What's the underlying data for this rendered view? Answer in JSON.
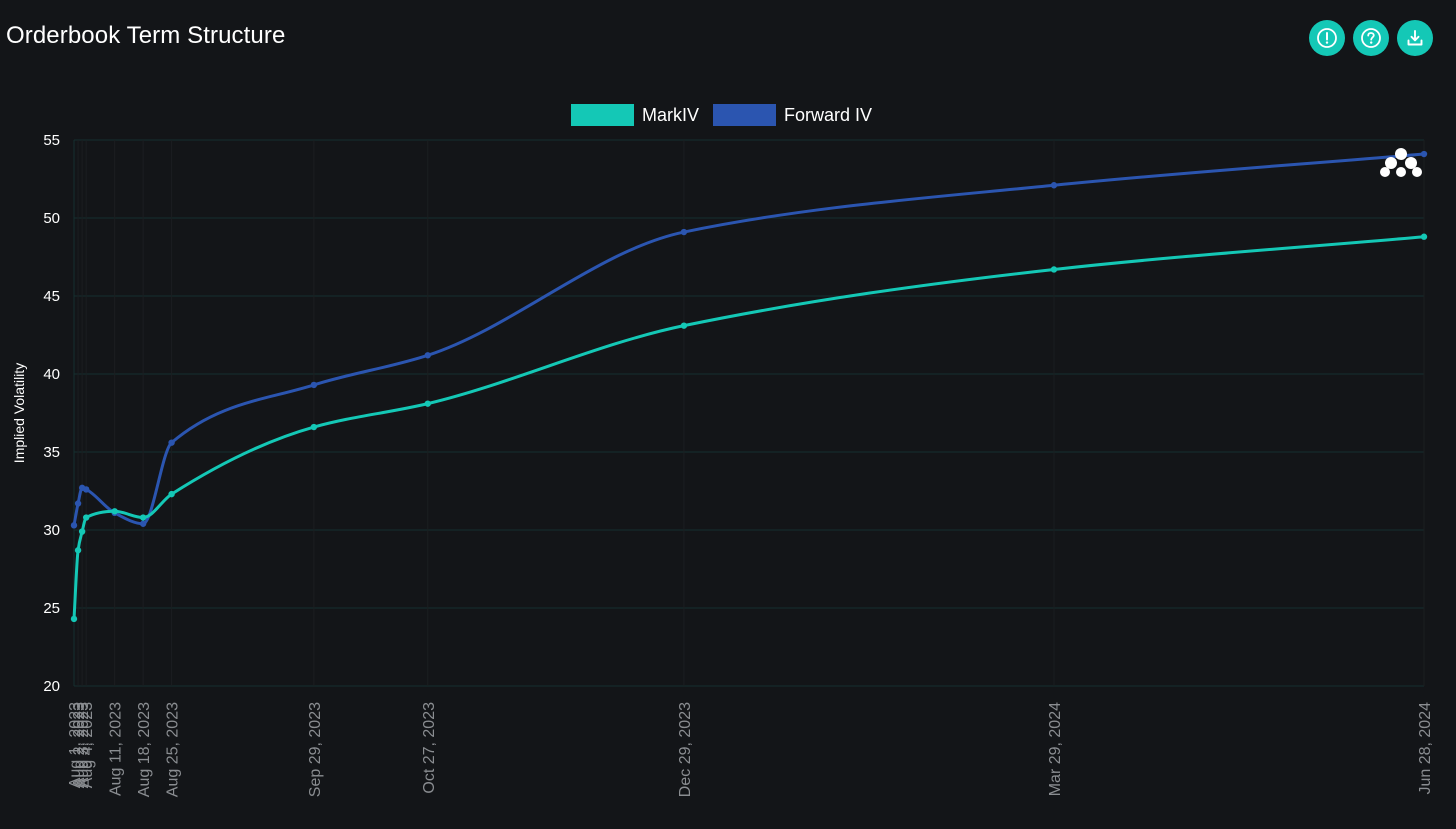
{
  "header": {
    "title": "Orderbook Term Structure"
  },
  "toolbar": {
    "buttons": [
      {
        "icon": "info-alert-icon"
      },
      {
        "icon": "help-icon"
      },
      {
        "icon": "download-icon"
      }
    ],
    "accent": "#14c8b6"
  },
  "legend": {
    "items": [
      {
        "label": "MarkIV",
        "color": "#14c8b6"
      },
      {
        "label": "Forward IV",
        "color": "#2b55b0"
      }
    ]
  },
  "chart_data": {
    "type": "line",
    "xlabel": "",
    "ylabel": "Implied Volatility",
    "ylim": [
      20,
      55
    ],
    "yticks": [
      20,
      25,
      30,
      35,
      40,
      45,
      50,
      55
    ],
    "grid": true,
    "legend_position": "top-center",
    "x_tick_labels": [
      "Aug 1, 2023",
      "Aug 2, 2023",
      "Aug 3, 2023",
      "Aug 4, 2023",
      "Aug 11, 2023",
      "Aug 18, 2023",
      "Aug 25, 2023",
      "Sep 29, 2023",
      "Oct 27, 2023",
      "Dec 29, 2023",
      "Mar 29, 2024",
      "Jun 28, 2024"
    ],
    "x": [
      "2023-08-01",
      "2023-08-02",
      "2023-08-03",
      "2023-08-04",
      "2023-08-11",
      "2023-08-18",
      "2023-08-25",
      "2023-09-29",
      "2023-10-27",
      "2023-12-29",
      "2024-03-29",
      "2024-06-28"
    ],
    "series": [
      {
        "name": "MarkIV",
        "color": "#14c8b6",
        "values": [
          24.3,
          28.7,
          29.9,
          30.8,
          31.2,
          30.8,
          32.3,
          36.6,
          38.1,
          43.1,
          46.7,
          48.8
        ]
      },
      {
        "name": "Forward IV",
        "color": "#2b55b0",
        "values": [
          30.3,
          31.7,
          32.7,
          32.6,
          31.1,
          30.4,
          35.6,
          39.3,
          41.2,
          49.1,
          52.1,
          54.1
        ]
      }
    ]
  }
}
